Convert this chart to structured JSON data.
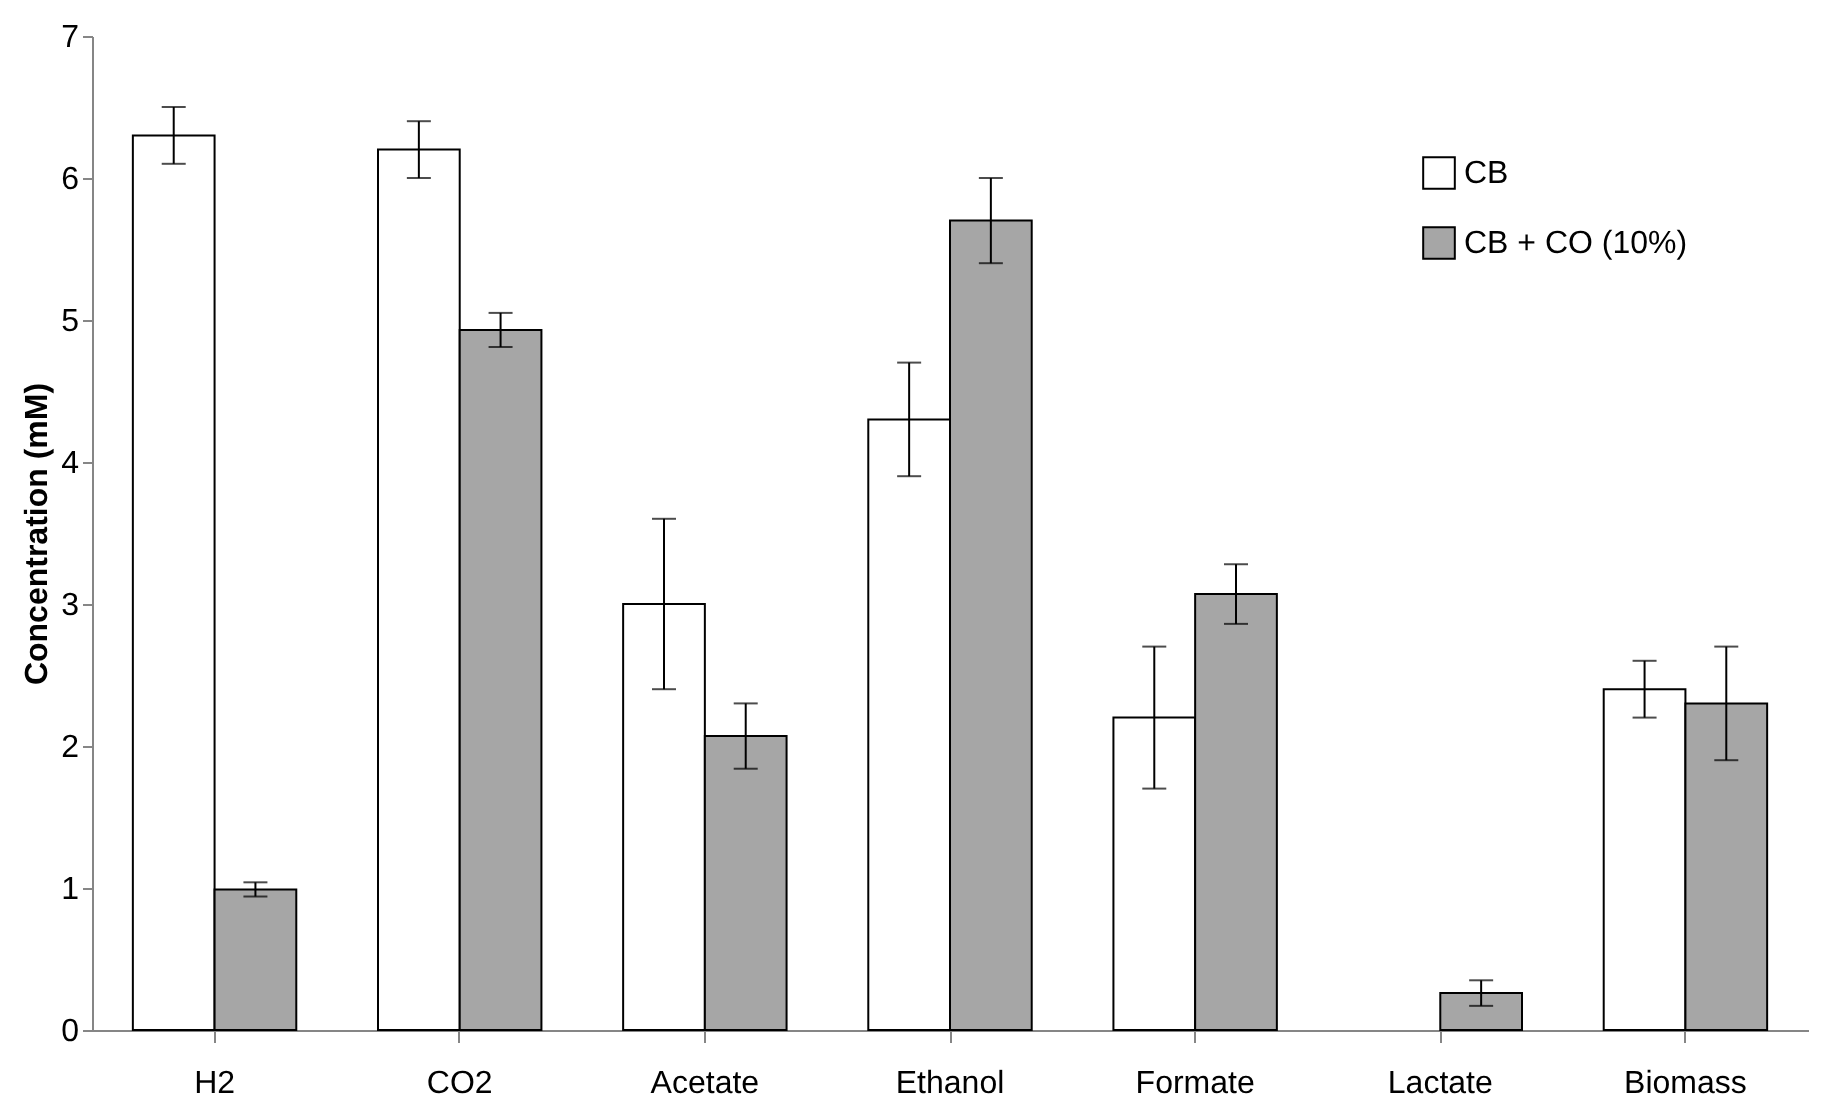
{
  "chart_data": {
    "type": "bar",
    "ylabel": "Concentration (mM)",
    "categories": [
      "H2",
      "CO2",
      "Acetate",
      "Ethanol",
      "Formate",
      "Lactate",
      "Biomass"
    ],
    "series": [
      {
        "name": "CB",
        "color": "#ffffff",
        "values": [
          6.3,
          6.2,
          3.0,
          4.3,
          2.2,
          null,
          2.4
        ],
        "errors": [
          0.2,
          0.2,
          0.6,
          0.4,
          0.5,
          null,
          0.2
        ]
      },
      {
        "name": "CB + CO (10%)",
        "color": "#a6a6a6",
        "values": [
          0.99,
          4.93,
          2.07,
          5.7,
          3.07,
          0.26,
          2.3
        ],
        "errors": [
          0.05,
          0.12,
          0.23,
          0.3,
          0.21,
          0.09,
          0.4
        ]
      }
    ],
    "ylim": [
      0,
      7
    ],
    "yticks": [
      0,
      1,
      2,
      3,
      4,
      5,
      6,
      7
    ],
    "grid": false,
    "legend": "top right"
  }
}
